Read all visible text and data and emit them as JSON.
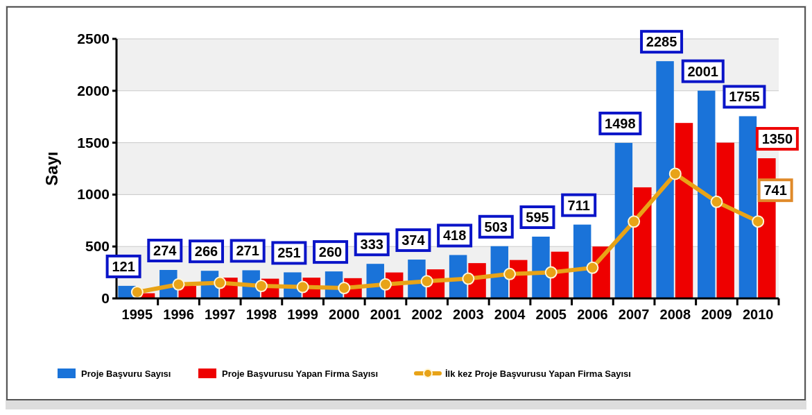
{
  "chart_data": {
    "type": "bar",
    "ylabel": "Sayı",
    "categories": [
      "1995",
      "1996",
      "1997",
      "1998",
      "1999",
      "2000",
      "2001",
      "2002",
      "2003",
      "2004",
      "2005",
      "2006",
      "2007",
      "2008",
      "2009",
      "2010"
    ],
    "series": [
      {
        "name": "Proje Başvuru Sayısı",
        "color": "#1a73d9",
        "values": [
          121,
          274,
          266,
          271,
          251,
          260,
          333,
          374,
          418,
          503,
          595,
          711,
          1498,
          2285,
          2001,
          1755
        ],
        "value_labels": [
          "121",
          "274",
          "266",
          "271",
          "251",
          "260",
          "333",
          "374",
          "418",
          "503",
          "595",
          "711",
          "1498",
          "2285",
          "2001",
          "1755"
        ]
      },
      {
        "name": "Proje Başvurusu  Yapan Firma Sayısı",
        "color": "#ee0000",
        "values": [
          50,
          120,
          200,
          190,
          200,
          195,
          250,
          280,
          340,
          370,
          450,
          500,
          1070,
          1690,
          1500,
          1350
        ],
        "value_labels": [
          null,
          null,
          null,
          null,
          null,
          null,
          null,
          null,
          null,
          null,
          null,
          null,
          null,
          null,
          null,
          "1350"
        ]
      },
      {
        "name": "İlk kez Proje Başvurusu Yapan Firma Sayısı",
        "type": "line",
        "color": "#e8a317",
        "values": [
          60,
          135,
          150,
          120,
          110,
          100,
          135,
          165,
          190,
          235,
          250,
          295,
          740,
          1200,
          930,
          741
        ],
        "value_labels": [
          null,
          null,
          null,
          null,
          null,
          null,
          null,
          null,
          null,
          null,
          null,
          null,
          null,
          null,
          null,
          "741"
        ]
      }
    ],
    "ylim": [
      0,
      2500
    ],
    "yticks": [
      0,
      500,
      1000,
      1500,
      2000,
      2500
    ],
    "grid": "y",
    "legend": "bottom",
    "marker": "circle"
  }
}
